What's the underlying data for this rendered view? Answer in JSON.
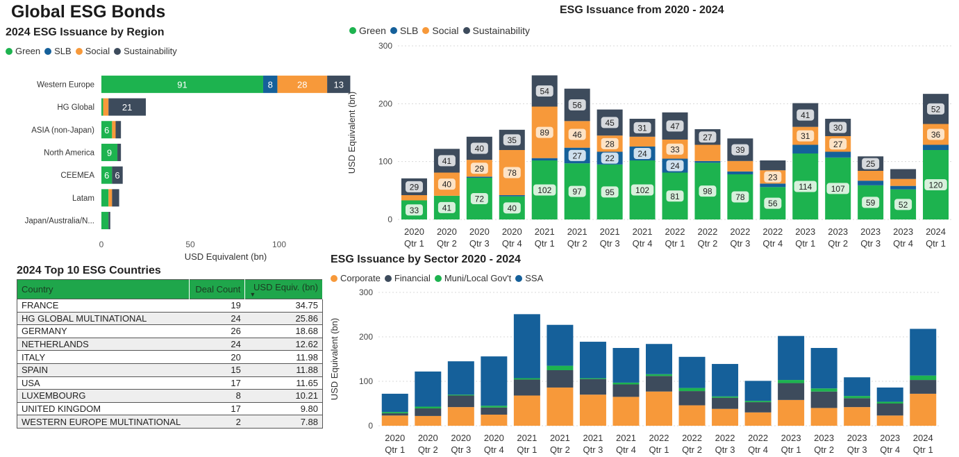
{
  "page_title": "Global ESG Bonds",
  "colors": {
    "green": "#1db34f",
    "slb": "#15609a",
    "social": "#f7993a",
    "sustainability": "#3d4b5c",
    "corporate": "#f7993a",
    "financial": "#3d4b5c",
    "muni": "#1db34f",
    "ssa": "#15609a"
  },
  "region_chart": {
    "title": "2024 ESG Issuance by Region",
    "legend": [
      "Green",
      "SLB",
      "Social",
      "Sustainability"
    ],
    "xlabel": "USD Equivalent (bn)",
    "ticks": [
      "0",
      "50",
      "100"
    ]
  },
  "time_chart": {
    "title": "ESG Issuance from 2020 - 2024",
    "legend": [
      "Green",
      "SLB",
      "Social",
      "Sustainability"
    ],
    "ylabel": "USD Equivalent (bn)",
    "ticks": [
      "0",
      "100",
      "200",
      "300"
    ]
  },
  "sector_chart": {
    "title": "ESG Issuance by Sector 2020 - 2024",
    "legend": [
      "Corporate",
      "Financial",
      "Muni/Local Gov't",
      "SSA"
    ],
    "ylabel": "USD Equivalent (bn)",
    "ticks": [
      "0",
      "100",
      "200",
      "300"
    ]
  },
  "table": {
    "title": "2024 Top 10 ESG Countries",
    "headers": [
      "Country",
      "Deal Count",
      "USD Equiv. (bn)"
    ],
    "rows": [
      [
        "FRANCE",
        "19",
        "34.75"
      ],
      [
        "HG GLOBAL MULTINATIONAL",
        "24",
        "25.86"
      ],
      [
        "GERMANY",
        "26",
        "18.68"
      ],
      [
        "NETHERLANDS",
        "24",
        "12.62"
      ],
      [
        "ITALY",
        "20",
        "11.98"
      ],
      [
        "SPAIN",
        "15",
        "11.88"
      ],
      [
        "USA",
        "17",
        "11.65"
      ],
      [
        "LUXEMBOURG",
        "8",
        "10.21"
      ],
      [
        "UNITED KINGDOM",
        "17",
        "9.80"
      ],
      [
        "WESTERN EUROPE MULTINATIONAL",
        "2",
        "7.88"
      ]
    ]
  },
  "chart_data": [
    {
      "type": "bar",
      "orientation": "horizontal",
      "stacked": true,
      "title": "2024 ESG Issuance by Region",
      "xlabel": "USD Equivalent (bn)",
      "xlim": [
        0,
        140
      ],
      "categories": [
        "Western Europe",
        "HG Global",
        "ASIA (non-Japan)",
        "North America",
        "CEEMEA",
        "Latam",
        "Japan/Australia/N..."
      ],
      "series": [
        {
          "name": "Green",
          "values": [
            91,
            1,
            6,
            9,
            6,
            4,
            4
          ]
        },
        {
          "name": "SLB",
          "values": [
            8,
            0,
            0,
            0,
            0,
            0,
            0
          ]
        },
        {
          "name": "Social",
          "values": [
            28,
            3,
            2,
            0,
            0,
            2,
            0
          ]
        },
        {
          "name": "Sustainability",
          "values": [
            13,
            21,
            3,
            2,
            6,
            4,
            1
          ]
        }
      ],
      "labels": [
        [
          "91",
          "8",
          "28",
          "13"
        ],
        [
          "",
          "",
          "",
          "21"
        ],
        [
          "6",
          "",
          "",
          ""
        ],
        [
          "9",
          "",
          "",
          ""
        ],
        [
          "6",
          "",
          "",
          "6"
        ],
        [
          "",
          "",
          "",
          ""
        ],
        [
          "",
          "",
          "",
          ""
        ]
      ]
    },
    {
      "type": "bar",
      "stacked": true,
      "title": "ESG Issuance from 2020 - 2024",
      "ylabel": "USD Equivalent (bn)",
      "ylim": [
        0,
        300
      ],
      "categories": [
        "2020 Qtr 1",
        "2020 Qtr 2",
        "2020 Qtr 3",
        "2020 Qtr 4",
        "2021 Qtr 1",
        "2021 Qtr 2",
        "2021 Qtr 3",
        "2021 Qtr 4",
        "2022 Qtr 1",
        "2022 Qtr 2",
        "2022 Qtr 3",
        "2022 Qtr 4",
        "2023 Qtr 1",
        "2023 Qtr 2",
        "2023 Qtr 3",
        "2023 Qtr 4",
        "2024 Qtr 1"
      ],
      "series": [
        {
          "name": "Green",
          "values": [
            33,
            41,
            72,
            40,
            102,
            97,
            95,
            102,
            81,
            98,
            78,
            56,
            114,
            107,
            59,
            52,
            120
          ]
        },
        {
          "name": "SLB",
          "values": [
            0,
            0,
            2,
            2,
            4,
            27,
            22,
            24,
            24,
            3,
            5,
            6,
            15,
            10,
            8,
            6,
            9
          ]
        },
        {
          "name": "Social",
          "values": [
            9,
            40,
            29,
            78,
            89,
            46,
            28,
            17,
            33,
            28,
            18,
            23,
            31,
            27,
            17,
            12,
            36
          ]
        },
        {
          "name": "Sustainability",
          "values": [
            29,
            41,
            40,
            35,
            54,
            56,
            45,
            31,
            47,
            27,
            39,
            17,
            41,
            30,
            25,
            17,
            52
          ]
        }
      ],
      "labels": [
        [
          "33",
          "",
          "",
          "29"
        ],
        [
          "41",
          "",
          "40",
          "41"
        ],
        [
          "72",
          "",
          "29",
          "40"
        ],
        [
          "40",
          "",
          "78",
          "35"
        ],
        [
          "102",
          "",
          "89",
          "54"
        ],
        [
          "97",
          "27",
          "46",
          "56"
        ],
        [
          "95",
          "22",
          "28",
          "45"
        ],
        [
          "102",
          "24",
          "",
          "31"
        ],
        [
          "81",
          "24",
          "33",
          "47"
        ],
        [
          "98",
          "",
          "",
          "27"
        ],
        [
          "78",
          "",
          "",
          "39"
        ],
        [
          "56",
          "",
          "23",
          ""
        ],
        [
          "114",
          "",
          "31",
          "41"
        ],
        [
          "107",
          "",
          "27",
          "30"
        ],
        [
          "59",
          "",
          "",
          "25"
        ],
        [
          "52",
          "",
          "",
          ""
        ],
        [
          "120",
          "",
          "36",
          "52"
        ]
      ]
    },
    {
      "type": "bar",
      "stacked": true,
      "title": "ESG Issuance by Sector 2020 - 2024",
      "ylabel": "USD Equivalent (bn)",
      "ylim": [
        0,
        300
      ],
      "categories": [
        "2020 Qtr 1",
        "2020 Qtr 2",
        "2020 Qtr 3",
        "2020 Qtr 4",
        "2021 Qtr 1",
        "2021 Qtr 2",
        "2021 Qtr 3",
        "2021 Qtr 4",
        "2022 Qtr 1",
        "2022 Qtr 2",
        "2022 Qtr 3",
        "2022 Qtr 4",
        "2023 Qtr 1",
        "2023 Qtr 2",
        "2023 Qtr 3",
        "2023 Qtr 4",
        "2024 Qtr 1"
      ],
      "series": [
        {
          "name": "Corporate",
          "values": [
            23,
            22,
            42,
            25,
            68,
            86,
            70,
            65,
            77,
            46,
            38,
            30,
            58,
            40,
            42,
            23,
            72
          ]
        },
        {
          "name": "Financial",
          "values": [
            5,
            17,
            26,
            16,
            36,
            39,
            35,
            28,
            35,
            32,
            25,
            23,
            38,
            37,
            20,
            27,
            31
          ]
        },
        {
          "name": "Muni/Local Gov't",
          "values": [
            3,
            4,
            2,
            4,
            3,
            10,
            2,
            4,
            4,
            7,
            3,
            3,
            7,
            7,
            5,
            4,
            10
          ]
        },
        {
          "name": "SSA",
          "values": [
            41,
            79,
            75,
            111,
            144,
            92,
            82,
            78,
            68,
            70,
            73,
            45,
            99,
            91,
            42,
            32,
            105
          ]
        }
      ]
    }
  ]
}
